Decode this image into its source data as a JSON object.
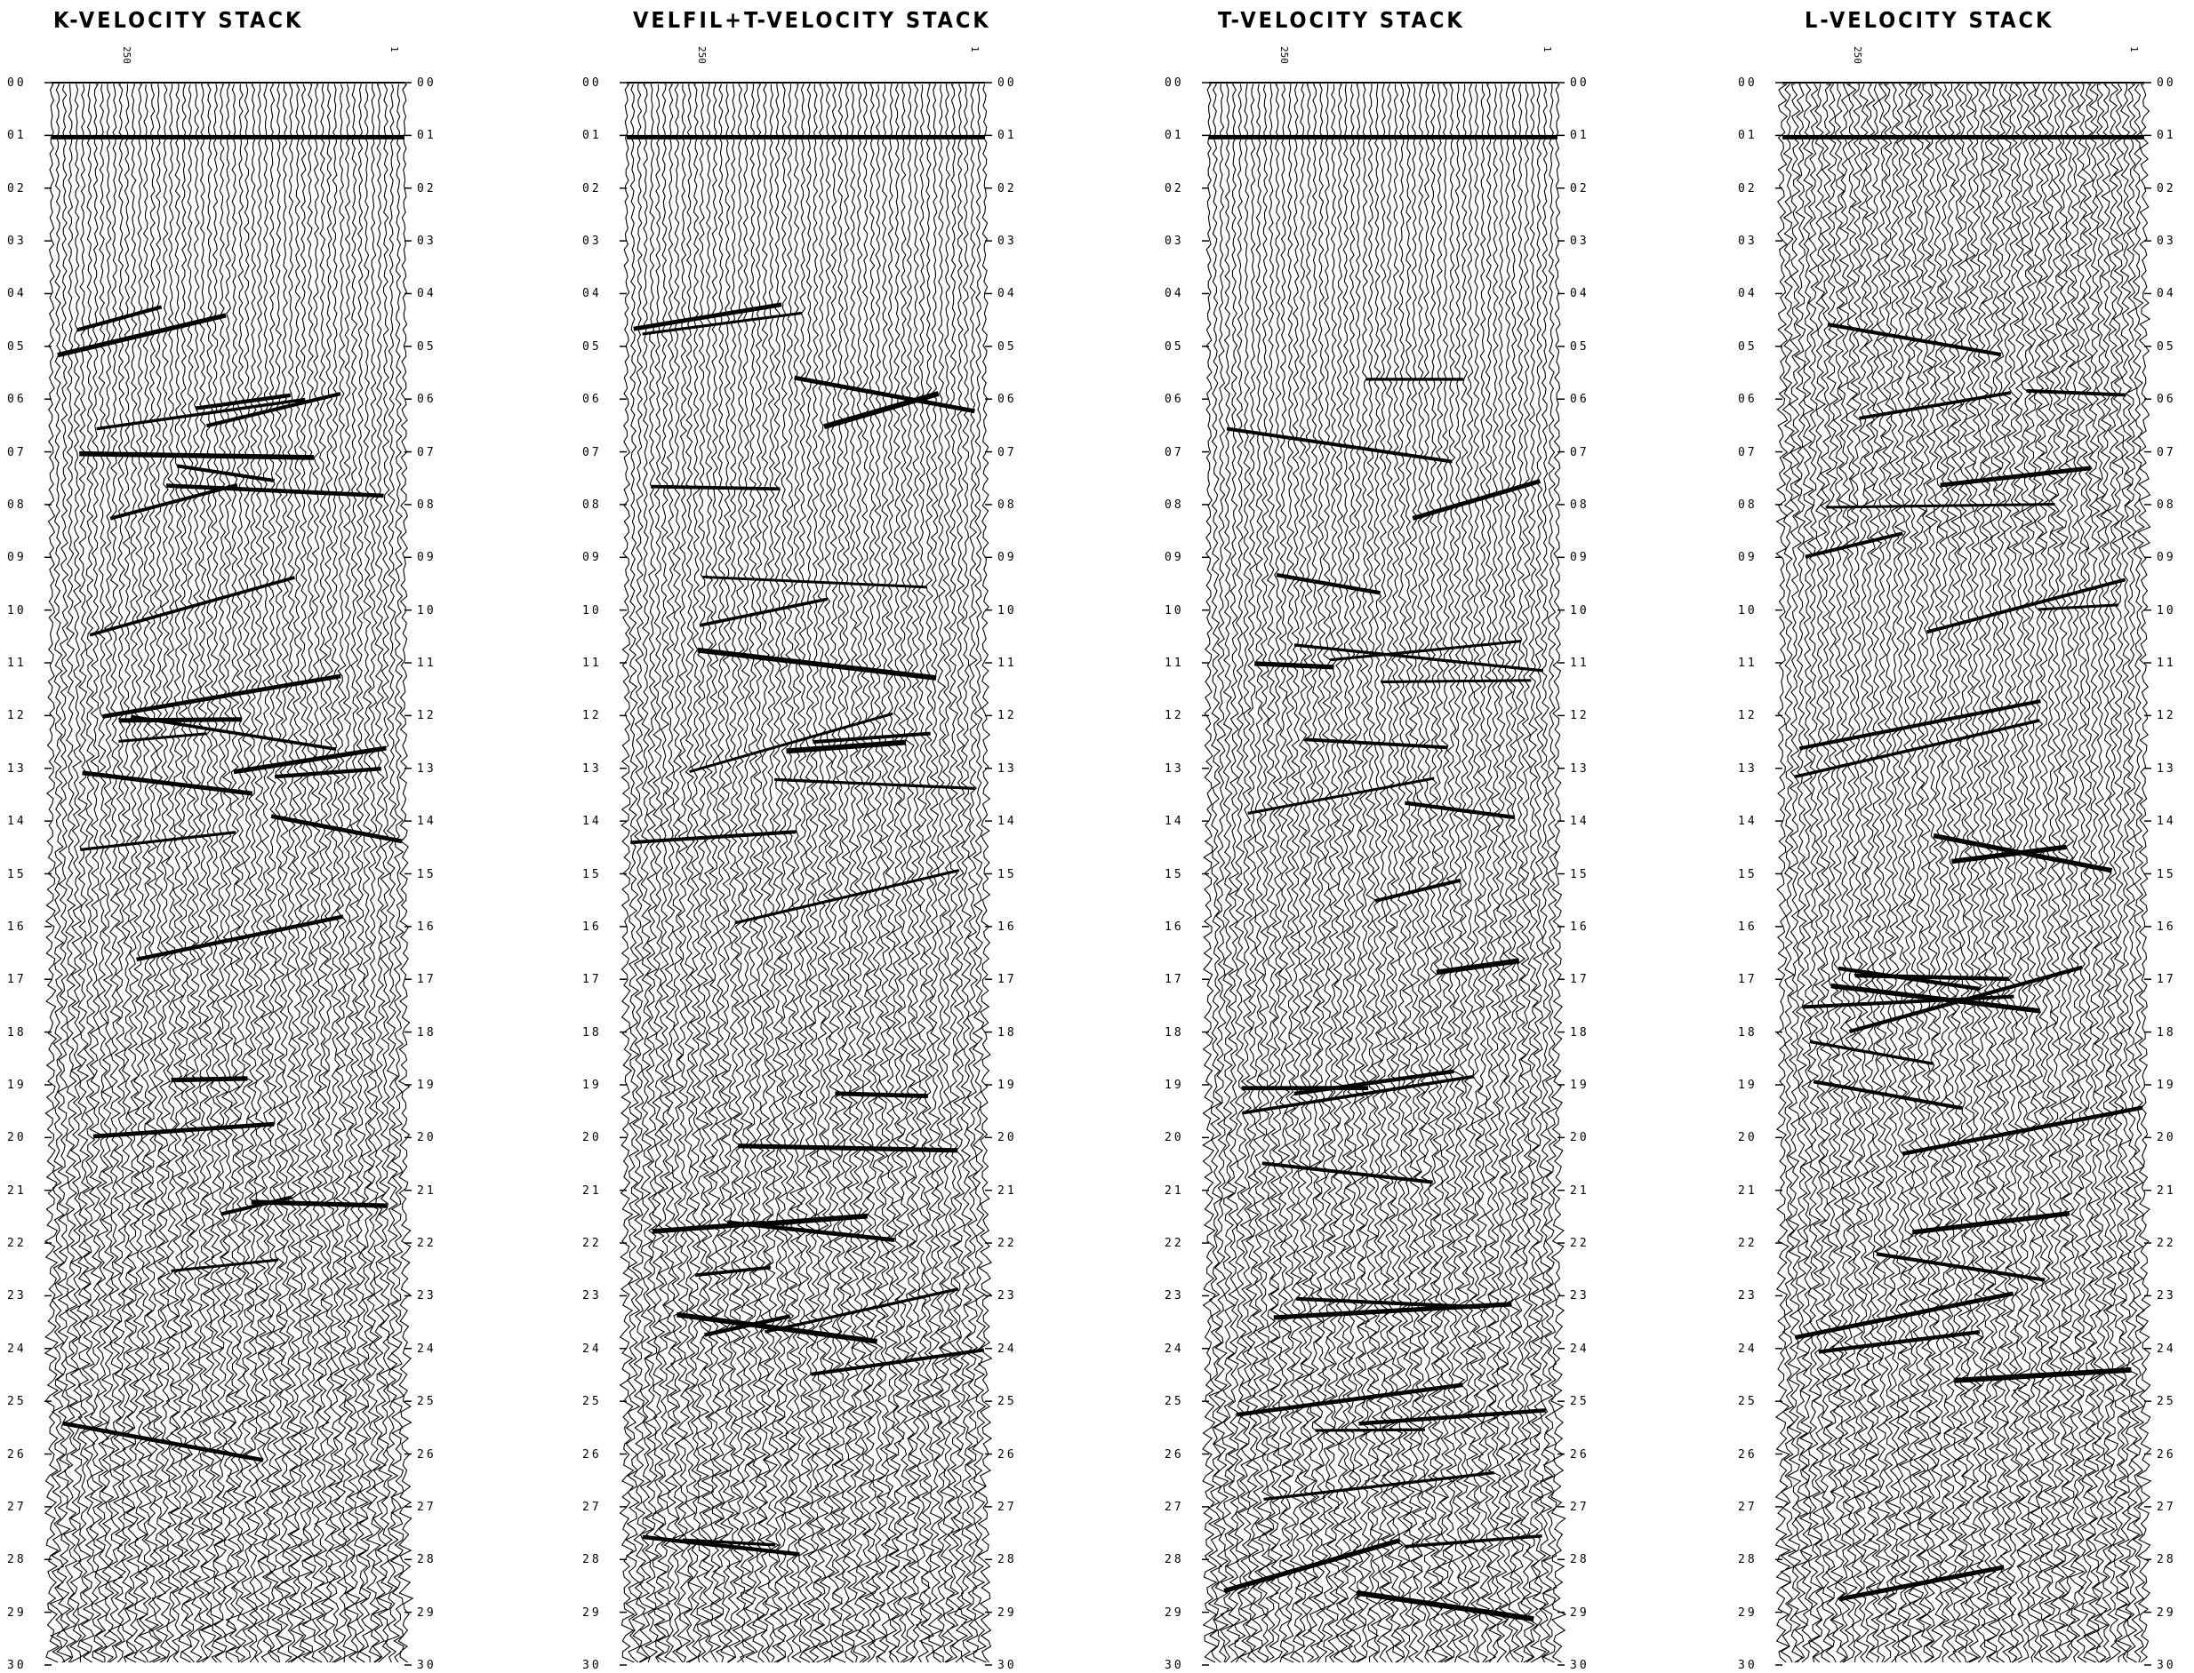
{
  "panels": [
    {
      "title": "K-VELOCITY STACK",
      "top_labels": [
        "250",
        "1"
      ]
    },
    {
      "title": "VELFIL+T-VELOCITY STACK",
      "top_labels": [
        "250",
        "1"
      ]
    },
    {
      "title": "T-VELOCITY STACK",
      "top_labels": [
        "250",
        "1"
      ]
    },
    {
      "title": "L-VELOCITY STACK",
      "top_labels": [
        "250",
        "1"
      ]
    }
  ],
  "time_labels": [
    "00",
    "01",
    "02",
    "03",
    "04",
    "05",
    "06",
    "07",
    "08",
    "09",
    "10",
    "11",
    "12",
    "13",
    "14",
    "15",
    "16",
    "17",
    "18",
    "19",
    "20",
    "21",
    "22",
    "23",
    "24",
    "25",
    "26",
    "27",
    "28",
    "29",
    "30"
  ],
  "colors": {
    "ink": "#000000",
    "paper": "#ffffff"
  }
}
